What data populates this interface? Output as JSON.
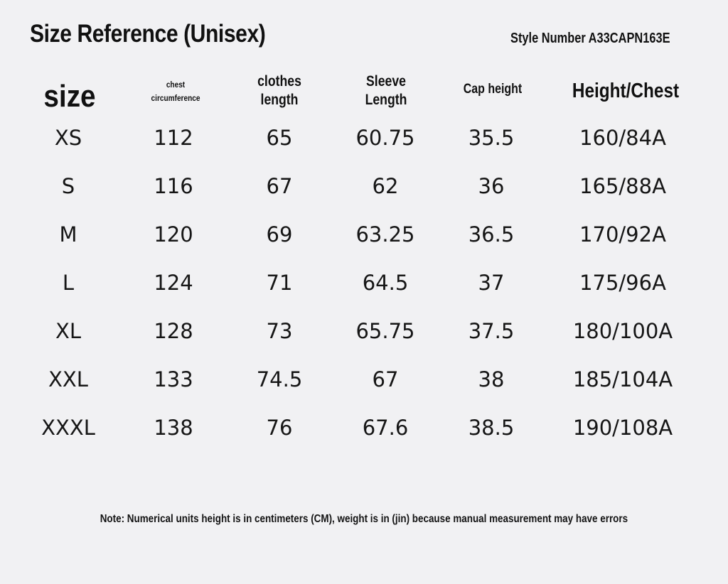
{
  "title": "Size Reference (Unisex)",
  "style_number": "Style Number A33CAPN163E",
  "table": {
    "headers": {
      "size": "size",
      "chest": [
        "chest",
        "circumference"
      ],
      "clothes": [
        "clothes",
        "length"
      ],
      "sleeve": [
        "Sleeve",
        "Length"
      ],
      "cap": "Cap height",
      "height_chest": "Height/Chest"
    },
    "rows": [
      [
        "XS",
        "112",
        "65",
        "60.75",
        "35.5",
        "160/84A"
      ],
      [
        "S",
        "116",
        "67",
        "62",
        "36",
        "165/88A"
      ],
      [
        "M",
        "120",
        "69",
        "63.25",
        "36.5",
        "170/92A"
      ],
      [
        "L",
        "124",
        "71",
        "64.5",
        "37",
        "175/96A"
      ],
      [
        "XL",
        "128",
        "73",
        "65.75",
        "37.5",
        "180/100A"
      ],
      [
        "XXL",
        "133",
        "74.5",
        "67",
        "38",
        "185/104A"
      ],
      [
        "XXXL",
        "138",
        "76",
        "67.6",
        "38.5",
        "190/108A"
      ]
    ]
  },
  "note": "Note: Numerical units height is in centimeters (CM), weight is in (jin) because manual measurement may have errors"
}
